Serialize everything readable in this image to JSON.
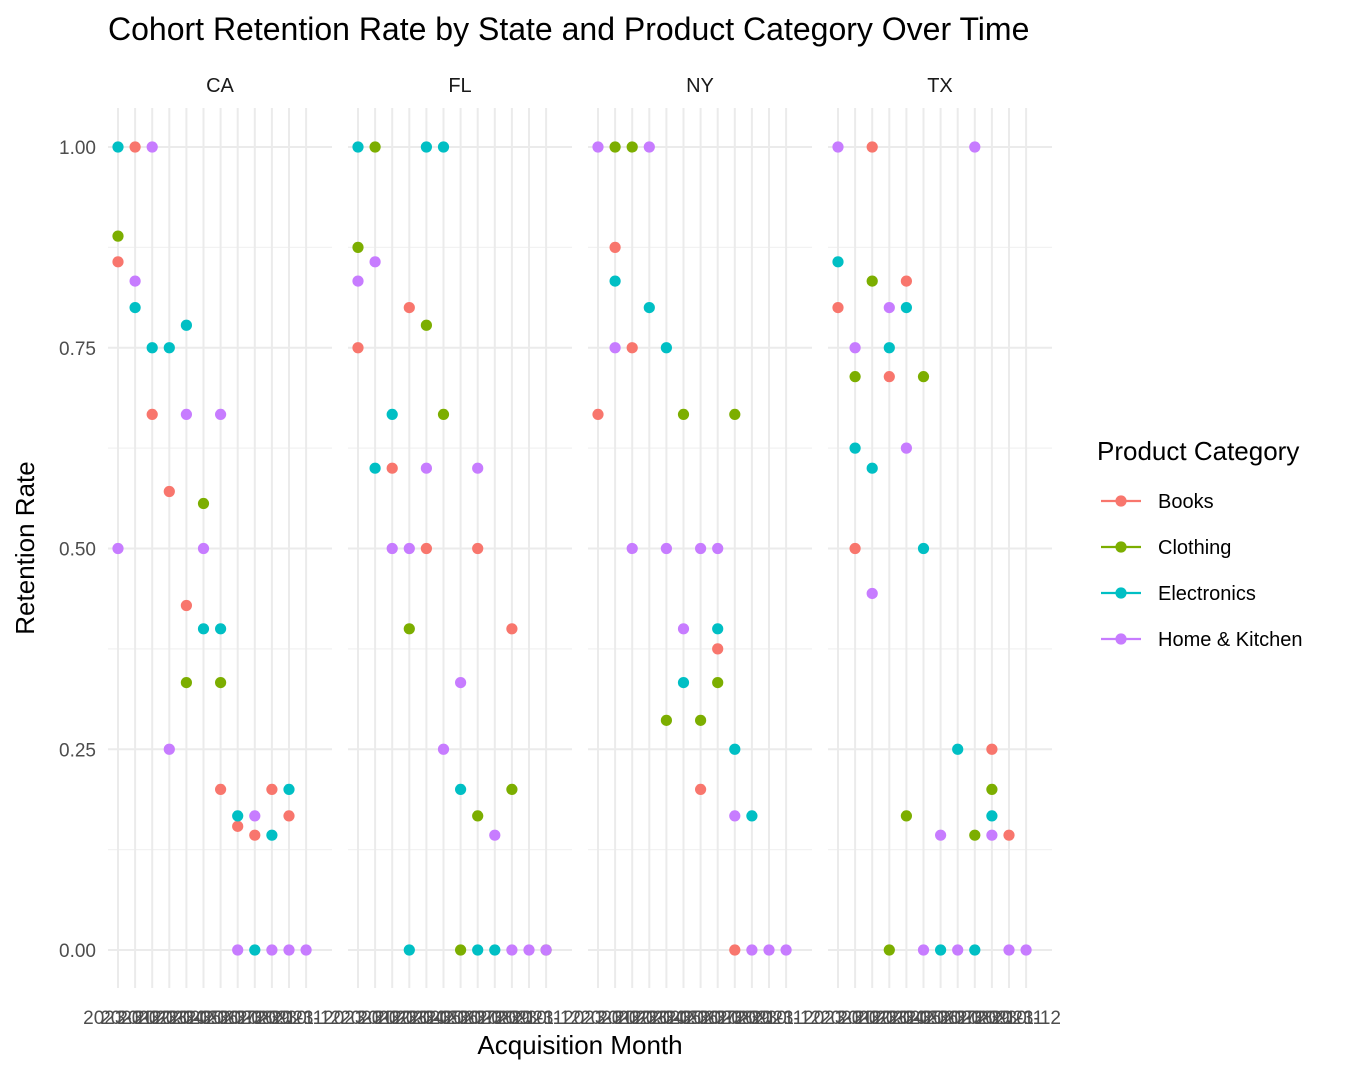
{
  "chart_data": {
    "type": "scatter",
    "title": "Cohort Retention Rate by State and Product Category Over Time",
    "xlabel": "Acquisition Month",
    "ylabel": "Retention Rate",
    "ylim": [
      0,
      1
    ],
    "y_ticks": [
      "0.00",
      "0.25",
      "0.50",
      "0.75",
      "1.00"
    ],
    "grid": true,
    "legend": {
      "title": "Product Category",
      "position": "right"
    },
    "x": [
      "2023-01",
      "2023-02",
      "2023-03",
      "2023-04",
      "2023-05",
      "2023-06",
      "2023-07",
      "2023-08",
      "2023-09",
      "2023-10",
      "2023-11",
      "2023-12"
    ],
    "x_tick_labels": [
      "2023-01",
      "2023-02",
      "2023-03",
      "2023-04",
      "2023-05",
      "2023-06",
      "2023-07",
      "2023-08",
      "2023-09",
      "2023-10",
      "2023-11",
      "2023-12"
    ],
    "facets": [
      "CA",
      "FL",
      "NY",
      "TX"
    ],
    "series": [
      {
        "name": "Books",
        "color": "#F8766D",
        "points": {
          "CA": [
            [
              1,
              0.857
            ],
            [
              2,
              1.0
            ],
            [
              3,
              0.667
            ],
            [
              4,
              0.571
            ],
            [
              5,
              0.429
            ],
            [
              7,
              0.2
            ],
            [
              8,
              0.154
            ],
            [
              9,
              0.143
            ],
            [
              10,
              0.2
            ],
            [
              11,
              0.167
            ]
          ],
          "FL": [
            [
              1,
              0.75
            ],
            [
              3,
              0.6
            ],
            [
              4,
              0.8
            ],
            [
              5,
              0.5
            ],
            [
              8,
              0.5
            ],
            [
              10,
              0.4
            ]
          ],
          "NY": [
            [
              1,
              0.667
            ],
            [
              2,
              0.875
            ],
            [
              3,
              0.75
            ],
            [
              7,
              0.2
            ],
            [
              8,
              0.375
            ],
            [
              9,
              0.0
            ]
          ],
          "TX": [
            [
              1,
              0.8
            ],
            [
              2,
              0.5
            ],
            [
              3,
              1.0
            ],
            [
              4,
              0.714
            ],
            [
              5,
              0.833
            ],
            [
              10,
              0.25
            ],
            [
              11,
              0.143
            ]
          ]
        }
      },
      {
        "name": "Clothing",
        "color": "#7CAE00",
        "points": {
          "CA": [
            [
              1,
              0.889
            ],
            [
              5,
              0.333
            ],
            [
              6,
              0.556
            ],
            [
              7,
              0.333
            ]
          ],
          "FL": [
            [
              1,
              0.875
            ],
            [
              2,
              1.0
            ],
            [
              4,
              0.4
            ],
            [
              5,
              0.778
            ],
            [
              6,
              0.667
            ],
            [
              7,
              0.0
            ],
            [
              8,
              0.167
            ],
            [
              10,
              0.2
            ],
            [
              12,
              0.0
            ]
          ],
          "NY": [
            [
              2,
              1.0
            ],
            [
              3,
              1.0
            ],
            [
              5,
              0.286
            ],
            [
              6,
              0.667
            ],
            [
              7,
              0.286
            ],
            [
              8,
              0.333
            ],
            [
              9,
              0.667
            ]
          ],
          "TX": [
            [
              2,
              0.714
            ],
            [
              3,
              0.833
            ],
            [
              4,
              0.0
            ],
            [
              5,
              0.167
            ],
            [
              6,
              0.714
            ],
            [
              9,
              0.143
            ],
            [
              10,
              0.2
            ]
          ]
        }
      },
      {
        "name": "Electronics",
        "color": "#00BFC4",
        "points": {
          "CA": [
            [
              1,
              1.0
            ],
            [
              2,
              0.8
            ],
            [
              3,
              0.75
            ],
            [
              4,
              0.75
            ],
            [
              5,
              0.778
            ],
            [
              6,
              0.4
            ],
            [
              7,
              0.4
            ],
            [
              8,
              0.167
            ],
            [
              9,
              0.0
            ],
            [
              10,
              0.143
            ],
            [
              11,
              0.2
            ]
          ],
          "FL": [
            [
              1,
              1.0
            ],
            [
              2,
              0.6
            ],
            [
              3,
              0.667
            ],
            [
              4,
              0.0
            ],
            [
              5,
              1.0
            ],
            [
              6,
              1.0
            ],
            [
              7,
              0.2
            ],
            [
              8,
              0.0
            ],
            [
              9,
              0.0
            ]
          ],
          "NY": [
            [
              2,
              0.833
            ],
            [
              4,
              0.8
            ],
            [
              5,
              0.75
            ],
            [
              6,
              0.333
            ],
            [
              8,
              0.4
            ],
            [
              9,
              0.25
            ],
            [
              10,
              0.167
            ]
          ],
          "TX": [
            [
              1,
              0.857
            ],
            [
              2,
              0.625
            ],
            [
              3,
              0.6
            ],
            [
              4,
              0.75
            ],
            [
              5,
              0.8
            ],
            [
              6,
              0.5
            ],
            [
              7,
              0.0
            ],
            [
              8,
              0.25
            ],
            [
              9,
              0.0
            ],
            [
              10,
              0.167
            ]
          ]
        }
      },
      {
        "name": "Home & Kitchen",
        "color": "#C77CFF",
        "points": {
          "CA": [
            [
              1,
              0.5
            ],
            [
              2,
              0.833
            ],
            [
              3,
              1.0
            ],
            [
              4,
              0.25
            ],
            [
              5,
              0.667
            ],
            [
              6,
              0.5
            ],
            [
              7,
              0.667
            ],
            [
              8,
              0.0
            ],
            [
              9,
              0.167
            ],
            [
              10,
              0.0
            ],
            [
              11,
              0.0
            ],
            [
              12,
              0.0
            ]
          ],
          "FL": [
            [
              1,
              0.833
            ],
            [
              2,
              0.857
            ],
            [
              3,
              0.5
            ],
            [
              4,
              0.5
            ],
            [
              5,
              0.6
            ],
            [
              6,
              0.25
            ],
            [
              7,
              0.333
            ],
            [
              8,
              0.6
            ],
            [
              9,
              0.143
            ],
            [
              10,
              0.0
            ],
            [
              11,
              0.0
            ],
            [
              12,
              0.0
            ]
          ],
          "NY": [
            [
              1,
              1.0
            ],
            [
              2,
              0.75
            ],
            [
              3,
              0.5
            ],
            [
              4,
              1.0
            ],
            [
              5,
              0.5
            ],
            [
              6,
              0.4
            ],
            [
              7,
              0.5
            ],
            [
              8,
              0.5
            ],
            [
              9,
              0.167
            ],
            [
              10,
              0.0
            ],
            [
              11,
              0.0
            ],
            [
              12,
              0.0
            ]
          ],
          "TX": [
            [
              1,
              1.0
            ],
            [
              2,
              0.75
            ],
            [
              3,
              0.444
            ],
            [
              4,
              0.8
            ],
            [
              5,
              0.625
            ],
            [
              6,
              0.0
            ],
            [
              7,
              0.143
            ],
            [
              8,
              0.0
            ],
            [
              9,
              1.0
            ],
            [
              10,
              0.143
            ],
            [
              11,
              0.0
            ],
            [
              12,
              0.0
            ]
          ]
        }
      }
    ]
  }
}
